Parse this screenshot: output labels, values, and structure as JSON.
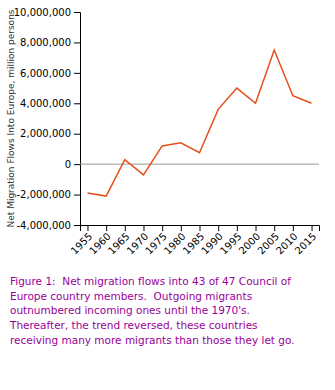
{
  "chart_data": {
    "type": "line",
    "y_label": "Net Migration Flows Into Europe, million persons",
    "caption": "Figure 1:  Net migration flows into 43 of 47 Council of\nEurope country members.  Outgoing migrants\noutnumbered incoming ones until the 1970's.\nThereafter, the trend reversed, these countries\nreceiving many more migrants than those they let go.",
    "x": [
      1955,
      1960,
      1965,
      1970,
      1975,
      1980,
      1985,
      1990,
      1995,
      2000,
      2005,
      2010,
      2015
    ],
    "values": [
      -1900000,
      -2100000,
      300000,
      -700000,
      1200000,
      1400000,
      750000,
      3600000,
      5000000,
      4000000,
      7500000,
      4500000,
      4000000
    ],
    "color": "#e84e1b",
    "hlines": [
      0
    ],
    "xlim": [
      1953,
      2017
    ],
    "ylim": [
      -4000000,
      10000000
    ],
    "xticks": [
      1955,
      1960,
      1965,
      1970,
      1975,
      1980,
      1985,
      1990,
      1995,
      2000,
      2005,
      2010,
      2015
    ],
    "yticks": [
      {
        "value": -4000000,
        "label": "-4,000,000"
      },
      {
        "value": -2000000,
        "label": "-2,000,000"
      },
      0,
      {
        "value": 2000000,
        "label": "2,000,000"
      },
      {
        "value": 4000000,
        "label": "4,000,000"
      },
      {
        "value": 6000000,
        "label": "6,000,000"
      },
      {
        "value": 8000000,
        "label": "8,000,000"
      },
      {
        "value": 10000000,
        "label": "10,000,000"
      }
    ],
    "grid": false
  }
}
